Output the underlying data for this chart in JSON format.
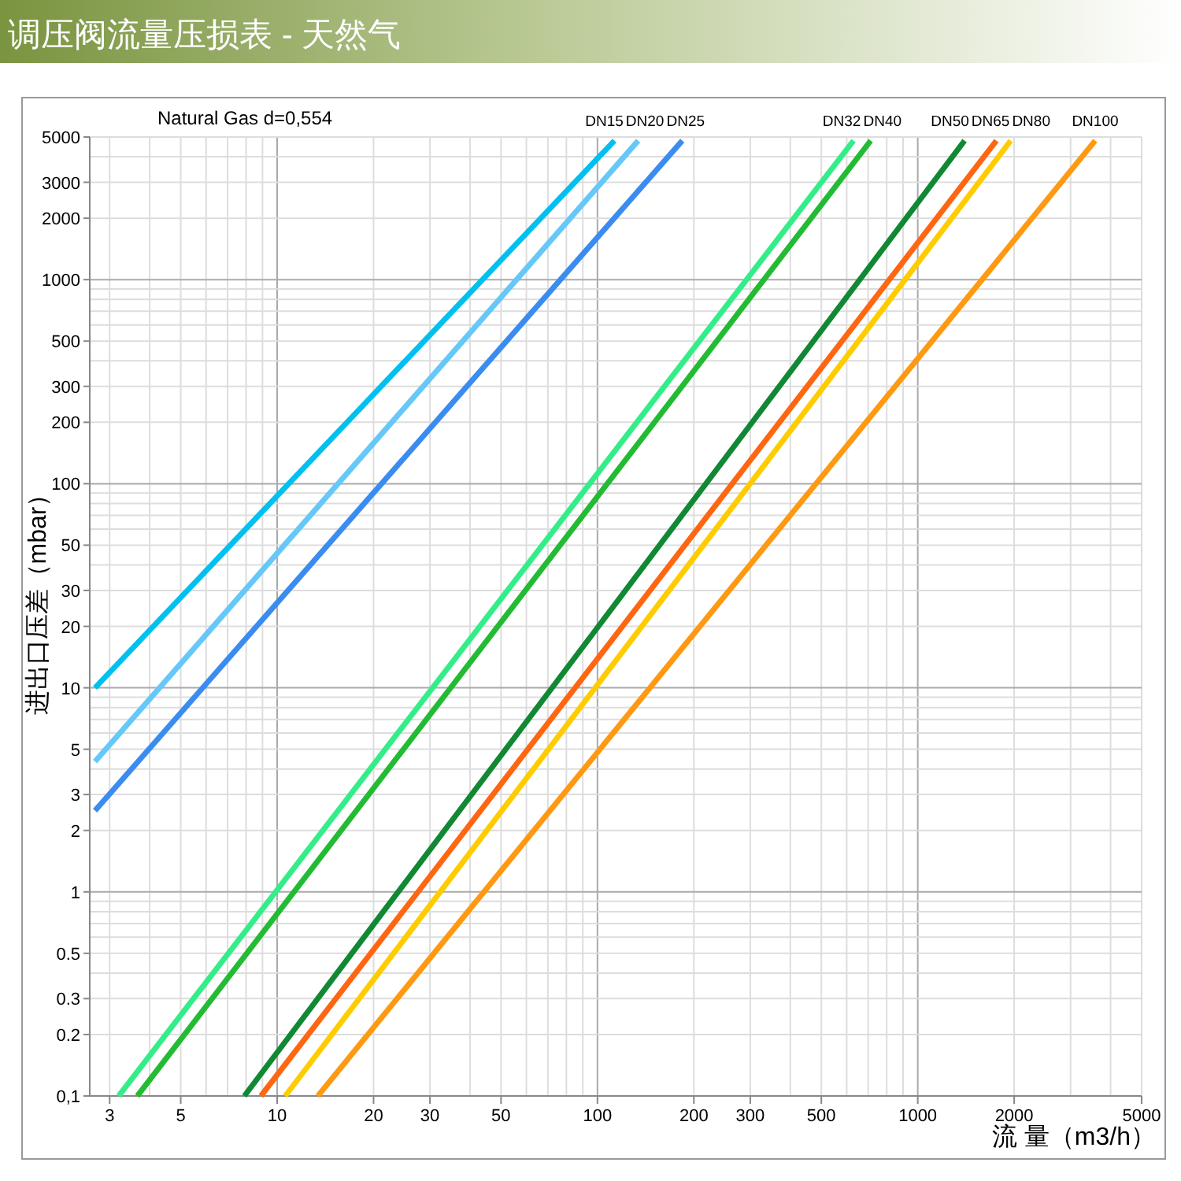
{
  "chart_data": {
    "type": "line",
    "title": "调压阀流量压损表 - 天然气",
    "xlabel": "流 量（m3/h）",
    "ylabel": "进出口压差（mbar）",
    "annotations": [
      "Natural Gas  d=0,554"
    ],
    "log": "xy",
    "grid": true,
    "marker": "none",
    "line_style": "solid",
    "xlim": [
      2.6,
      5000
    ],
    "ylim": [
      0.1,
      5000
    ],
    "xticks": [
      3,
      5,
      10,
      20,
      30,
      50,
      100,
      200,
      300,
      500,
      1000,
      2000,
      5000
    ],
    "yticks": [
      {
        "value": 0.1,
        "label": "0,1"
      },
      0.2,
      0.3,
      0.5,
      1,
      2,
      3,
      5,
      10,
      20,
      30,
      50,
      100,
      200,
      300,
      500,
      1000,
      2000,
      3000,
      5000
    ],
    "series": [
      {
        "name": "DN15",
        "color": "#00c0f0",
        "x": [
          2.7,
          113
        ],
        "values": [
          10,
          4800
        ]
      },
      {
        "name": "DN20",
        "color": "#66c8f8",
        "x": [
          2.7,
          134
        ],
        "values": [
          4.35,
          4800
        ]
      },
      {
        "name": "DN25",
        "color": "#3a8cf0",
        "x": [
          2.7,
          184
        ],
        "values": [
          2.5,
          4800
        ]
      },
      {
        "name": "DN32",
        "color": "#33ee88",
        "x": [
          3.2,
          630
        ],
        "values": [
          0.1,
          4800
        ]
      },
      {
        "name": "DN40",
        "color": "#22bb33",
        "x": [
          3.66,
          713
        ],
        "values": [
          0.1,
          4800
        ]
      },
      {
        "name": "DN50",
        "color": "#118833",
        "x": [
          7.9,
          1400
        ],
        "values": [
          0.1,
          4800
        ]
      },
      {
        "name": "DN65",
        "color": "#ff6611",
        "x": [
          8.9,
          1760
        ],
        "values": [
          0.1,
          4800
        ]
      },
      {
        "name": "DN80",
        "color": "#ffcc00",
        "x": [
          10.6,
          1950
        ],
        "values": [
          0.1,
          4800
        ]
      },
      {
        "name": "DN100",
        "color": "#ff9911",
        "x": [
          13.4,
          3580
        ],
        "values": [
          0.1,
          4800
        ]
      }
    ]
  }
}
